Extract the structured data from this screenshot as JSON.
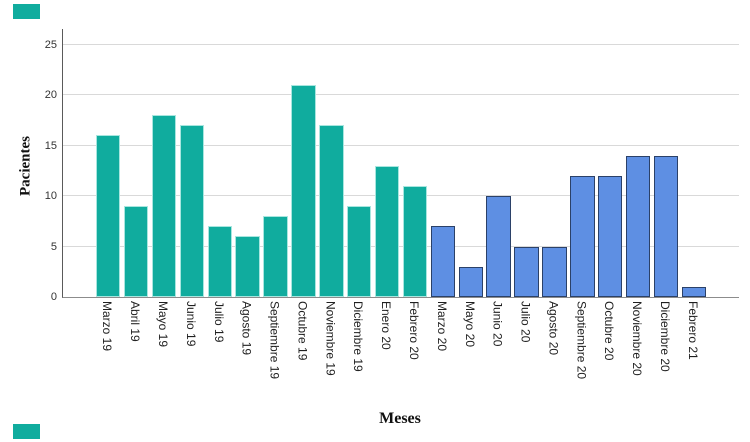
{
  "figure_title": "",
  "decorations": {
    "teal_marker_color": "#10ac9e",
    "top_left_marker": "teal-rectangle",
    "bottom_left_marker": "teal-rectangle"
  },
  "colors": {
    "gridline": "#d9d9d9",
    "axis_line": "#5a5a5a",
    "teal_fill": "#10ac9e",
    "teal_border": "#a8e6df",
    "blue_fill": "#5e8fe3",
    "blue_border": "#2b4168"
  },
  "chart_data": {
    "type": "bar",
    "title": "",
    "xlabel": "Meses",
    "ylabel": "Pacientes",
    "ylim": [
      0,
      25
    ],
    "yticks": [
      0,
      5,
      10,
      15,
      20,
      25
    ],
    "grid": true,
    "legend": "none",
    "series_meta": {
      "teal": {
        "fill": "#10ac9e",
        "border": "#a8e6df"
      },
      "blue": {
        "fill": "#5e8fe3",
        "border": "#2b4168"
      }
    },
    "bars": [
      {
        "label": "Marzo 19",
        "value": 16,
        "series": "teal"
      },
      {
        "label": "Abril 19",
        "value": 9,
        "series": "teal"
      },
      {
        "label": "Mayo 19",
        "value": 18,
        "series": "teal"
      },
      {
        "label": "Junio 19",
        "value": 17,
        "series": "teal"
      },
      {
        "label": "Julio 19",
        "value": 7,
        "series": "teal"
      },
      {
        "label": "Agosto 19",
        "value": 6,
        "series": "teal"
      },
      {
        "label": "Septiembre 19",
        "value": 8,
        "series": "teal"
      },
      {
        "label": "Octubre 19",
        "value": 21,
        "series": "teal"
      },
      {
        "label": "Noviembre 19",
        "value": 17,
        "series": "teal"
      },
      {
        "label": "Diciembre 19",
        "value": 9,
        "series": "teal"
      },
      {
        "label": "Enero 20",
        "value": 13,
        "series": "teal"
      },
      {
        "label": "Febrero 20",
        "value": 11,
        "series": "teal"
      },
      {
        "label": "Marzo 20",
        "value": 7,
        "series": "blue"
      },
      {
        "label": "Mayo 20",
        "value": 3,
        "series": "blue"
      },
      {
        "label": "Junio 20",
        "value": 10,
        "series": "blue"
      },
      {
        "label": "Julio 20",
        "value": 5,
        "series": "blue"
      },
      {
        "label": "Agosto 20",
        "value": 5,
        "series": "blue"
      },
      {
        "label": "Septiembre 20",
        "value": 12,
        "series": "blue"
      },
      {
        "label": "Octubre 20",
        "value": 12,
        "series": "blue"
      },
      {
        "label": "Noviembre 20",
        "value": 14,
        "series": "blue"
      },
      {
        "label": "Diciembre 20",
        "value": 14,
        "series": "blue"
      },
      {
        "label": "Febrero 21",
        "value": 1,
        "series": "blue"
      }
    ]
  }
}
